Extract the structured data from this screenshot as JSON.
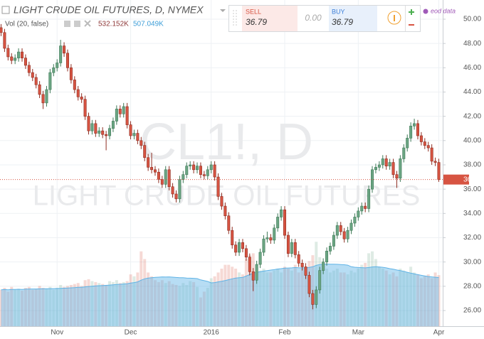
{
  "chart_data": {
    "type": "candlestick",
    "title": "LIGHT CRUDE OIL FUTURES, D, NYMEX",
    "watermark": "CL1!, D",
    "watermark_subtitle": "LIGHT CRUDE OIL FUTURES",
    "categories": [
      null,
      null,
      null,
      null,
      null,
      null,
      null,
      null,
      null,
      null,
      null,
      null,
      null,
      null,
      null,
      null,
      "Nov",
      null,
      null,
      null,
      null,
      null,
      null,
      null,
      null,
      null,
      null,
      null,
      null,
      null,
      null,
      null,
      null,
      null,
      null,
      null,
      null,
      "Dec",
      null,
      null,
      null,
      null,
      null,
      null,
      null,
      null,
      null,
      null,
      null,
      null,
      null,
      null,
      null,
      null,
      null,
      null,
      null,
      null,
      null,
      null,
      "2016",
      null,
      null,
      null,
      null,
      null,
      null,
      null,
      null,
      null,
      null,
      null,
      null,
      null,
      null,
      null,
      null,
      null,
      null,
      null,
      null,
      "Feb",
      null,
      null,
      null,
      null,
      null,
      null,
      null,
      null,
      null,
      null,
      null,
      null,
      null,
      null,
      null,
      null,
      null,
      null,
      null,
      null,
      "Mar",
      null,
      null,
      null,
      null,
      null,
      null,
      null,
      null,
      null,
      null,
      null,
      null,
      null,
      null,
      null,
      null,
      null,
      null,
      null,
      null,
      null,
      null,
      "Apr"
    ],
    "open": [
      49.3,
      48.9,
      47.6,
      46.9,
      46.6,
      46.8,
      47.3,
      46.8,
      46.2,
      45.6,
      45.2,
      44.6,
      43.8,
      43.1,
      44.2,
      45.6,
      46.0,
      46.4,
      47.8,
      47.2,
      46.0,
      45.0,
      44.2,
      43.6,
      43.4,
      42.0,
      40.8,
      41.4,
      40.6,
      40.8,
      40.5,
      40.4,
      41.0,
      41.6,
      42.6,
      42.2,
      42.8,
      41.3,
      40.4,
      40.6,
      40.0,
      39.6,
      38.6,
      37.8,
      37.6,
      37.4,
      36.8,
      36.4,
      37.6,
      36.2,
      35.6,
      35.2,
      36.8,
      37.2,
      37.9,
      38.0,
      37.6,
      37.9,
      37.2,
      37.1,
      37.6,
      38.0,
      37.0,
      35.4,
      34.6,
      33.8,
      32.6,
      31.4,
      30.8,
      31.6,
      31.1,
      30.4,
      29.2,
      28.5,
      29.8,
      30.8,
      31.9,
      32.0,
      31.8,
      32.8,
      33.7,
      34.3,
      32.2,
      30.7,
      31.6,
      30.6,
      29.9,
      29.6,
      28.9,
      27.4,
      26.5,
      27.7,
      29.3,
      30.0,
      30.9,
      31.3,
      32.2,
      33.0,
      32.5,
      31.9,
      32.6,
      33.2,
      33.7,
      34.2,
      34.6,
      34.4,
      36.0,
      37.6,
      37.8,
      38.0,
      38.5,
      37.9,
      38.2,
      37.2,
      36.9,
      38.5,
      39.4,
      40.2,
      41.2,
      41.4,
      40.4,
      39.9,
      39.6,
      39.4,
      38.3,
      38.2
    ],
    "high": [
      49.6,
      49.2,
      47.9,
      47.2,
      47.1,
      47.6,
      47.6,
      47.1,
      46.5,
      45.9,
      45.5,
      44.9,
      44.1,
      44.5,
      45.9,
      46.3,
      46.7,
      48.3,
      48.1,
      47.5,
      46.3,
      45.3,
      44.5,
      43.9,
      43.7,
      42.3,
      41.7,
      41.7,
      41.1,
      41.1,
      40.8,
      41.3,
      41.9,
      42.9,
      42.9,
      43.1,
      43.1,
      41.6,
      40.9,
      40.9,
      40.3,
      39.9,
      38.9,
      39.0,
      37.9,
      37.7,
      37.1,
      37.9,
      37.9,
      36.5,
      35.9,
      37.1,
      37.5,
      38.2,
      38.3,
      38.3,
      38.2,
      38.2,
      37.5,
      37.9,
      38.3,
      38.3,
      37.3,
      35.7,
      34.9,
      34.1,
      32.9,
      31.7,
      31.9,
      31.9,
      31.4,
      30.7,
      29.5,
      30.1,
      31.1,
      32.2,
      32.5,
      32.3,
      33.1,
      34.0,
      34.6,
      34.6,
      32.5,
      31.9,
      31.9,
      30.9,
      30.2,
      29.9,
      29.2,
      27.7,
      28.0,
      29.6,
      30.3,
      31.2,
      31.6,
      32.5,
      33.3,
      33.3,
      32.8,
      32.9,
      33.5,
      34.0,
      34.5,
      34.9,
      34.9,
      36.3,
      37.9,
      38.1,
      38.3,
      38.8,
      38.8,
      38.5,
      38.5,
      37.5,
      38.8,
      39.7,
      40.5,
      41.5,
      41.8,
      41.7,
      40.7,
      40.2,
      39.9,
      39.7,
      38.6,
      38.5
    ],
    "low": [
      48.6,
      47.3,
      46.6,
      46.3,
      46.3,
      46.5,
      46.5,
      45.9,
      45.3,
      44.9,
      44.3,
      43.5,
      42.6,
      42.8,
      43.9,
      45.3,
      45.7,
      46.1,
      46.9,
      45.7,
      44.7,
      43.9,
      43.3,
      43.1,
      41.7,
      40.5,
      40.5,
      40.3,
      40.3,
      40.2,
      39.2,
      40.1,
      40.7,
      41.3,
      41.9,
      41.9,
      41.0,
      40.1,
      40.1,
      39.7,
      39.3,
      38.3,
      37.5,
      37.3,
      37.1,
      36.5,
      36.1,
      36.1,
      35.9,
      35.3,
      34.9,
      34.9,
      36.5,
      36.9,
      37.6,
      37.3,
      37.3,
      36.9,
      36.8,
      36.8,
      37.3,
      36.7,
      35.1,
      34.3,
      33.5,
      32.3,
      31.1,
      30.5,
      30.5,
      30.8,
      30.1,
      28.9,
      27.6,
      28.2,
      29.5,
      30.5,
      31.6,
      31.5,
      31.5,
      32.5,
      33.4,
      31.9,
      30.4,
      30.4,
      30.3,
      29.6,
      29.3,
      28.6,
      27.1,
      26.1,
      26.2,
      27.4,
      29.0,
      29.7,
      30.6,
      31.0,
      31.9,
      32.2,
      31.6,
      31.6,
      32.3,
      32.9,
      33.4,
      33.9,
      34.1,
      34.1,
      35.7,
      37.3,
      37.5,
      37.7,
      37.6,
      37.6,
      36.9,
      36.1,
      36.6,
      38.2,
      39.1,
      39.9,
      40.9,
      40.1,
      39.6,
      39.3,
      39.1,
      38.0,
      37.9,
      36.6
    ],
    "close": [
      48.9,
      47.6,
      46.9,
      46.6,
      46.8,
      47.3,
      46.8,
      46.2,
      45.6,
      45.2,
      44.6,
      43.8,
      43.1,
      44.2,
      45.6,
      46.0,
      46.4,
      47.8,
      47.2,
      46.0,
      45.0,
      44.2,
      43.6,
      43.4,
      42.0,
      40.8,
      41.4,
      40.6,
      40.8,
      40.5,
      40.4,
      41.0,
      41.6,
      42.6,
      42.2,
      42.8,
      41.3,
      40.4,
      40.6,
      40.0,
      39.6,
      38.6,
      37.8,
      37.6,
      37.4,
      36.8,
      36.4,
      37.6,
      36.2,
      35.6,
      35.2,
      36.8,
      37.2,
      37.9,
      38.0,
      37.6,
      37.9,
      37.2,
      37.1,
      37.6,
      38.0,
      37.0,
      35.4,
      34.6,
      33.8,
      32.6,
      31.4,
      30.8,
      31.6,
      31.1,
      30.4,
      29.2,
      28.5,
      29.8,
      30.8,
      31.9,
      32.0,
      31.8,
      32.8,
      33.7,
      34.3,
      32.2,
      30.7,
      31.6,
      30.6,
      29.9,
      29.6,
      28.9,
      27.4,
      26.5,
      27.7,
      29.3,
      30.0,
      30.9,
      31.3,
      32.2,
      33.0,
      32.5,
      31.9,
      32.6,
      33.2,
      33.7,
      34.2,
      34.6,
      34.4,
      36.0,
      37.6,
      37.8,
      38.0,
      38.5,
      37.9,
      38.2,
      37.2,
      36.9,
      38.5,
      39.4,
      40.2,
      41.2,
      41.4,
      40.4,
      39.9,
      39.6,
      39.4,
      38.3,
      38.2,
      36.79
    ],
    "up_color": "#6ba583",
    "down_color": "#d75442",
    "ylim": [
      24.71,
      51.58
    ],
    "yticks": [
      {
        "value": 26,
        "label": "26.00"
      },
      {
        "value": 28,
        "label": "28.00"
      },
      {
        "value": 30,
        "label": "30.00"
      },
      {
        "value": 32,
        "label": "32.00"
      },
      {
        "value": 34,
        "label": "34.00"
      },
      {
        "value": 36,
        "label": "36.00"
      },
      {
        "value": 38,
        "label": "38.00"
      },
      {
        "value": 40,
        "label": "40.00"
      },
      {
        "value": 42,
        "label": "42.00"
      },
      {
        "value": 44,
        "label": "44.00"
      },
      {
        "value": 46,
        "label": "46.00"
      },
      {
        "value": 48,
        "label": "48.00"
      },
      {
        "value": 50,
        "label": "50.00"
      }
    ],
    "grid": true,
    "volume": {
      "name": "Vol (20, false)",
      "values": [
        380,
        400,
        360,
        410,
        380,
        390,
        370,
        400,
        410,
        380,
        390,
        420,
        400,
        390,
        410,
        380,
        400,
        430,
        410,
        420,
        430,
        440,
        450,
        420,
        480,
        490,
        470,
        460,
        450,
        440,
        430,
        470,
        460,
        480,
        450,
        460,
        470,
        540,
        520,
        560,
        780,
        700,
        560,
        520,
        480,
        460,
        480,
        450,
        470,
        440,
        430,
        420,
        450,
        430,
        470,
        460,
        410,
        300,
        360,
        400,
        500,
        520,
        560,
        600,
        640,
        640,
        620,
        600,
        560,
        540,
        700,
        740,
        760,
        620,
        580,
        600,
        560,
        560,
        580,
        600,
        560,
        620,
        600,
        580,
        640,
        560,
        600,
        620,
        680,
        740,
        880,
        720,
        640,
        600,
        560,
        580,
        600,
        560,
        560,
        540,
        580,
        560,
        600,
        640,
        660,
        760,
        780,
        700,
        620,
        600,
        580,
        540,
        560,
        520,
        600,
        580,
        560,
        620,
        560,
        540,
        500,
        520,
        540,
        500,
        560,
        532.152
      ],
      "ma": [
        380,
        382,
        380,
        384,
        384,
        385,
        384,
        386,
        388,
        388,
        388,
        390,
        391,
        391,
        392,
        392,
        393,
        395,
        396,
        398,
        400,
        402,
        405,
        406,
        410,
        414,
        417,
        420,
        422,
        424,
        426,
        429,
        432,
        435,
        437,
        440,
        443,
        450,
        455,
        462,
        480,
        494,
        502,
        506,
        509,
        511,
        514,
        513,
        514,
        511,
        508,
        506,
        505,
        502,
        501,
        499,
        496,
        483,
        475,
        467,
        452,
        455,
        462,
        469,
        476,
        485,
        494,
        502,
        506,
        509,
        523,
        538,
        553,
        562,
        568,
        575,
        580,
        585,
        590,
        596,
        600,
        605,
        607,
        608,
        612,
        609,
        608,
        608,
        613,
        620,
        634,
        643,
        647,
        648,
        647,
        646,
        645,
        643,
        641,
        636,
        620,
        615,
        612,
        610,
        608,
        612,
        618,
        620,
        618,
        614,
        608,
        600,
        594,
        586,
        580,
        572,
        562,
        553,
        545,
        538,
        530,
        524,
        518,
        514,
        510,
        507.049
      ],
      "legend_values": [
        "532.152K",
        "507.049K"
      ],
      "ylim": [
        0,
        3400
      ],
      "ma_color": "#5fb3e6"
    }
  },
  "trade_panel": {
    "sell": "SELL",
    "sell_price": "36.79",
    "spread": "0.00",
    "buy": "BUY",
    "buy_price": "36.79"
  },
  "data_source": "eod data"
}
